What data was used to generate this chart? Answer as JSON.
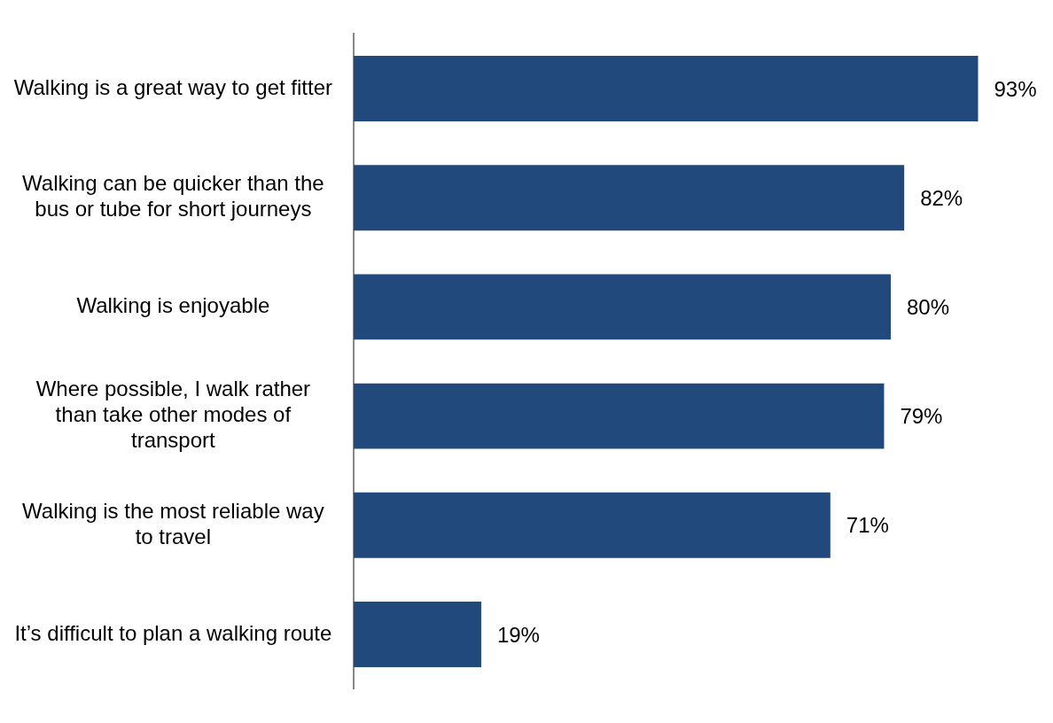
{
  "chart_data": {
    "type": "bar",
    "orientation": "horizontal",
    "categories": [
      "Walking is a great way to get fitter",
      "Walking can be quicker than the bus or tube for short journeys",
      "Walking is enjoyable",
      "Where possible, I walk rather than take other modes of transport",
      "Walking is the most reliable way to travel",
      "It’s difficult to plan a walking route"
    ],
    "values": [
      93,
      82,
      80,
      79,
      71,
      19
    ],
    "value_labels": [
      "93%",
      "82%",
      "80%",
      "79%",
      "71%",
      "19%"
    ],
    "color": "#21497b",
    "grid": false,
    "legend": false,
    "tick_labels": "y"
  }
}
